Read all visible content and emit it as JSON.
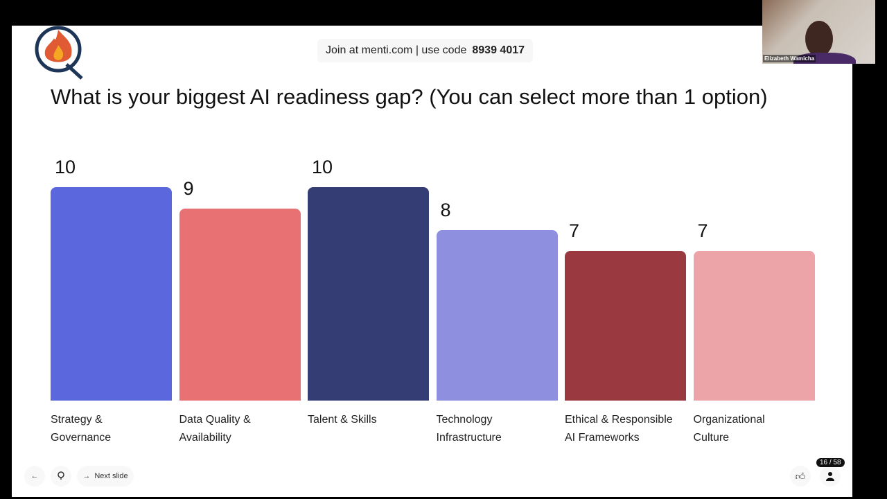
{
  "header": {
    "join_text": "Join at menti.com | use code",
    "code": "8939 4017"
  },
  "question": "What is your biggest AI readiness gap? (You can select more than 1 option)",
  "chart_data": {
    "type": "bar",
    "categories": [
      "Strategy & Governance",
      "Data Quality & Availability",
      "Talent & Skills",
      "Technology Infrastructure",
      "Ethical & Responsible AI Frameworks",
      "Organizational Culture"
    ],
    "category_lines": [
      [
        "Strategy &",
        "Governance"
      ],
      [
        "Data Quality &",
        "Availability"
      ],
      [
        "Talent & Skills",
        ""
      ],
      [
        "Technology",
        "Infrastructure"
      ],
      [
        "Ethical & Responsible",
        "AI Frameworks"
      ],
      [
        "Organizational",
        "Culture"
      ]
    ],
    "values": [
      10,
      9,
      10,
      8,
      7,
      7
    ],
    "value_labels": [
      "10",
      "9",
      "10",
      "8",
      "7",
      "7"
    ],
    "colors": [
      "#5b67dc",
      "#e87174",
      "#353d75",
      "#8f8fe0",
      "#9a3a40",
      "#eca4a8"
    ],
    "ylim": [
      0,
      10
    ]
  },
  "controls": {
    "next_label": "Next slide",
    "slide_counter": "16 / 58"
  },
  "webcam": {
    "name": "Elizabeth Wamicha"
  }
}
